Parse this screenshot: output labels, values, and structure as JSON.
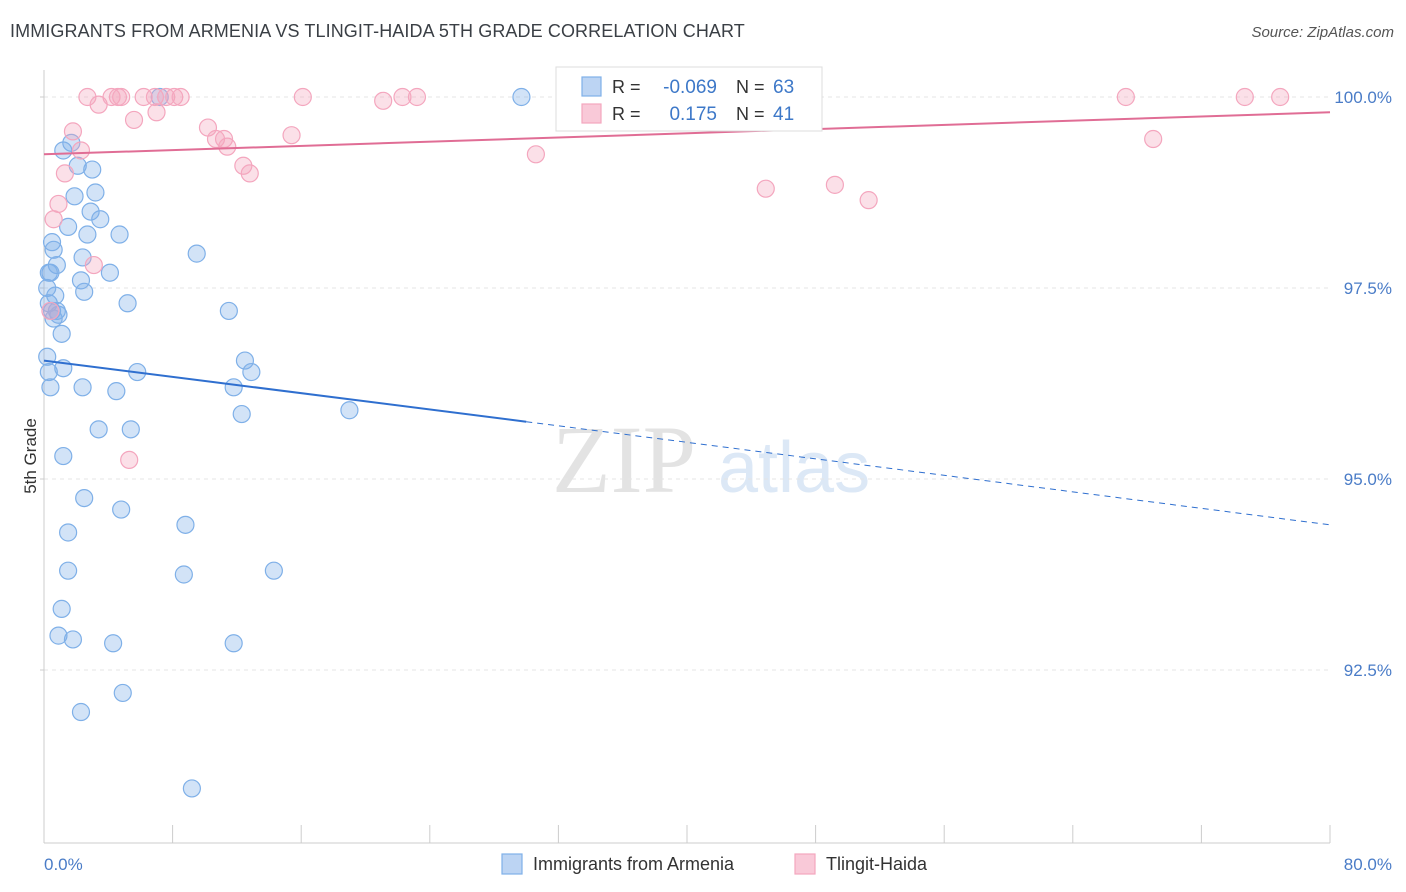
{
  "header": {
    "title": "IMMIGRANTS FROM ARMENIA VS TLINGIT-HAIDA 5TH GRADE CORRELATION CHART",
    "source": "Source: ZipAtlas.com"
  },
  "watermark": {
    "zip": "ZIP",
    "atlas": "atlas"
  },
  "chart_data": {
    "type": "scatter",
    "title": "IMMIGRANTS FROM ARMENIA VS TLINGIT-HAIDA 5TH GRADE CORRELATION CHART",
    "xlabel": "",
    "ylabel": "5th Grade",
    "xlim": [
      0,
      80
    ],
    "ylim": [
      90.2,
      100.35
    ],
    "x_tick_labels": [
      "0.0%",
      "80.0%"
    ],
    "y_ticks": [
      {
        "value": 100.0,
        "label": "100.0%"
      },
      {
        "value": 97.5,
        "label": "97.5%"
      },
      {
        "value": 95.0,
        "label": "95.0%"
      },
      {
        "value": 92.5,
        "label": "92.5%"
      }
    ],
    "legend_placement": "bottom-center",
    "stats": [
      {
        "r_label": "R =",
        "r": "-0.069",
        "n_label": "N =",
        "n": "63"
      },
      {
        "r_label": "R =",
        "r": "0.175",
        "n_label": "N =",
        "n": "41"
      }
    ],
    "series": [
      {
        "name": "Immigrants from Armenia",
        "color": "#7fb0e8",
        "line_color": "#2f6fcf",
        "trend": {
          "x0": 0,
          "y0": 96.55,
          "x1": 30,
          "y1": 95.75,
          "x_dash_end": 80,
          "y_dash_end": 94.4
        },
        "points": [
          [
            0.2,
            97.5
          ],
          [
            0.3,
            97.3
          ],
          [
            0.4,
            97.7
          ],
          [
            0.5,
            97.2
          ],
          [
            0.3,
            96.4
          ],
          [
            0.4,
            96.2
          ],
          [
            0.5,
            98.1
          ],
          [
            0.6,
            98.0
          ],
          [
            0.7,
            97.4
          ],
          [
            0.8,
            97.8
          ],
          [
            0.9,
            97.15
          ],
          [
            1.1,
            96.9
          ],
          [
            1.2,
            96.45
          ],
          [
            1.5,
            98.3
          ],
          [
            1.7,
            99.4
          ],
          [
            1.2,
            99.3
          ],
          [
            1.9,
            98.7
          ],
          [
            2.1,
            99.1
          ],
          [
            2.3,
            97.6
          ],
          [
            2.4,
            97.9
          ],
          [
            2.5,
            97.45
          ],
          [
            2.7,
            98.2
          ],
          [
            2.9,
            98.5
          ],
          [
            3.0,
            99.05
          ],
          [
            3.2,
            98.75
          ],
          [
            3.5,
            98.4
          ],
          [
            4.1,
            97.7
          ],
          [
            4.5,
            96.15
          ],
          [
            4.7,
            98.2
          ],
          [
            5.2,
            97.3
          ],
          [
            5.4,
            95.65
          ],
          [
            5.8,
            96.4
          ],
          [
            0.2,
            96.6
          ],
          [
            0.8,
            97.2
          ],
          [
            2.5,
            94.75
          ],
          [
            1.2,
            95.3
          ],
          [
            1.5,
            94.3
          ],
          [
            1.5,
            93.8
          ],
          [
            1.1,
            93.3
          ],
          [
            0.9,
            92.95
          ],
          [
            1.8,
            92.9
          ],
          [
            4.3,
            92.85
          ],
          [
            3.4,
            95.65
          ],
          [
            2.4,
            96.2
          ],
          [
            4.8,
            94.6
          ],
          [
            8.8,
            94.4
          ],
          [
            8.7,
            93.75
          ],
          [
            9.5,
            97.95
          ],
          [
            11.5,
            97.2
          ],
          [
            11.8,
            96.2
          ],
          [
            12.5,
            96.55
          ],
          [
            12.9,
            96.4
          ],
          [
            12.3,
            95.85
          ],
          [
            11.8,
            92.85
          ],
          [
            14.3,
            93.8
          ],
          [
            2.3,
            91.95
          ],
          [
            4.9,
            92.2
          ],
          [
            9.2,
            90.95
          ],
          [
            19.0,
            95.9
          ],
          [
            29.7,
            100.0
          ],
          [
            7.2,
            100.0
          ],
          [
            0.3,
            97.7
          ],
          [
            0.6,
            97.1
          ]
        ]
      },
      {
        "name": "Tlingit-Haida",
        "color": "#f4a6be",
        "line_color": "#e06d95",
        "trend": {
          "x0": 0,
          "y0": 99.25,
          "x1": 80,
          "y1": 99.8
        },
        "points": [
          [
            0.4,
            97.2
          ],
          [
            0.6,
            98.4
          ],
          [
            0.9,
            98.6
          ],
          [
            1.3,
            99.0
          ],
          [
            1.8,
            99.55
          ],
          [
            2.3,
            99.3
          ],
          [
            2.7,
            100.0
          ],
          [
            3.1,
            97.8
          ],
          [
            3.4,
            99.9
          ],
          [
            4.2,
            100.0
          ],
          [
            4.6,
            100.0
          ],
          [
            4.8,
            100.0
          ],
          [
            5.3,
            95.25
          ],
          [
            5.6,
            99.7
          ],
          [
            6.2,
            100.0
          ],
          [
            6.9,
            100.0
          ],
          [
            7.0,
            99.8
          ],
          [
            7.6,
            100.0
          ],
          [
            8.1,
            100.0
          ],
          [
            8.5,
            100.0
          ],
          [
            10.2,
            99.6
          ],
          [
            10.7,
            99.45
          ],
          [
            11.2,
            99.45
          ],
          [
            11.4,
            99.35
          ],
          [
            12.4,
            99.1
          ],
          [
            12.8,
            99.0
          ],
          [
            15.4,
            99.5
          ],
          [
            16.1,
            100.0
          ],
          [
            21.1,
            99.95
          ],
          [
            22.3,
            100.0
          ],
          [
            23.2,
            100.0
          ],
          [
            30.6,
            99.25
          ],
          [
            34.4,
            99.95
          ],
          [
            36.2,
            100.0
          ],
          [
            44.9,
            98.8
          ],
          [
            49.2,
            98.85
          ],
          [
            51.3,
            98.65
          ],
          [
            67.3,
            100.0
          ],
          [
            69.0,
            99.45
          ],
          [
            74.7,
            100.0
          ],
          [
            76.9,
            100.0
          ]
        ]
      }
    ]
  }
}
